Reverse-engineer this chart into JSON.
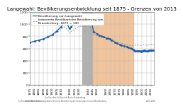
{
  "title": "Langewahl: Bevölkerungsentwicklung seit 1875 - Grenzen von 2013",
  "background_color": "#ffffff",
  "plot_bg_color": "#ffffff",
  "grid_color": "#bbbbbb",
  "nazi_start": 1933,
  "nazi_end": 1945,
  "nazi_color": "#b0b0b0",
  "ddr_start": 1945,
  "ddr_end": 1990,
  "ddr_color": "#f2c49b",
  "years_blue": [
    1875,
    1880,
    1885,
    1890,
    1895,
    1900,
    1905,
    1910,
    1913,
    1917,
    1919,
    1921,
    1925,
    1929,
    1933,
    1936,
    1939,
    1942,
    1944,
    1946,
    1950,
    1952,
    1955,
    1957,
    1960,
    1962,
    1964,
    1966,
    1970,
    1972,
    1975,
    1977,
    1980,
    1983,
    1985,
    1987,
    1989,
    1990,
    1991,
    1992,
    1993,
    1994,
    1995,
    1996,
    1997,
    1998,
    1999,
    2000,
    2001,
    2002,
    2003,
    2004,
    2005,
    2006,
    2007,
    2008,
    2009,
    2010,
    2011,
    2012,
    2013
  ],
  "pop_blue": [
    700,
    720,
    740,
    760,
    790,
    830,
    890,
    960,
    1010,
    990,
    930,
    960,
    1010,
    1060,
    1080,
    1060,
    1090,
    1100,
    1020,
    880,
    840,
    820,
    800,
    790,
    775,
    770,
    760,
    740,
    700,
    685,
    665,
    655,
    640,
    625,
    615,
    605,
    600,
    585,
    570,
    560,
    558,
    560,
    563,
    566,
    560,
    558,
    554,
    560,
    565,
    570,
    567,
    562,
    558,
    556,
    562,
    568,
    574,
    578,
    570,
    574,
    576
  ],
  "years_grey": [
    1875,
    1880,
    1885,
    1890,
    1895,
    1900,
    1905,
    1910,
    1913,
    1917,
    1919,
    1921,
    1925,
    1929,
    1933,
    1936,
    1939,
    1942,
    1944,
    1946,
    1950,
    1952,
    1955,
    1957,
    1960,
    1962,
    1964,
    1966,
    1970,
    1972,
    1975,
    1977,
    1980,
    1983,
    1985,
    1987,
    1989,
    1990,
    1991,
    1992,
    1993,
    1994,
    1995,
    1996,
    1997,
    1998,
    1999,
    2000,
    2001,
    2002,
    2003,
    2004,
    2005,
    2006,
    2007,
    2008,
    2009,
    2010,
    2011,
    2012,
    2013
  ],
  "pop_grey": [
    700,
    715,
    730,
    755,
    780,
    815,
    865,
    920,
    960,
    910,
    850,
    880,
    920,
    960,
    970,
    960,
    980,
    960,
    900,
    840,
    810,
    800,
    790,
    782,
    770,
    765,
    758,
    750,
    718,
    705,
    692,
    683,
    672,
    660,
    655,
    650,
    648,
    645,
    648,
    653,
    655,
    658,
    662,
    660,
    657,
    654,
    651,
    654,
    660,
    665,
    662,
    659,
    656,
    654,
    658,
    663,
    668,
    672,
    665,
    668,
    670
  ],
  "ylim": [
    0,
    1200
  ],
  "xlim": [
    1875,
    2013
  ],
  "yticks": [
    0,
    200,
    400,
    600,
    800,
    1000,
    1200
  ],
  "ytick_labels": [
    "0",
    "200",
    "400",
    "600",
    "800",
    "1.000",
    "1.200"
  ],
  "xtick_years": [
    1875,
    1880,
    1885,
    1890,
    1895,
    1900,
    1905,
    1910,
    1920,
    1925,
    1930,
    1940,
    1945,
    1950,
    1960,
    1965,
    1970,
    1975,
    1980,
    1985,
    1990,
    1995,
    2000,
    2005,
    2010
  ],
  "blue_color": "#1a5fa8",
  "grey_color": "#888888",
  "blue_label": "Bevölkerung von Langewahl",
  "grey_label": "Indexierte Bevölkerliche Bevölkerung von\nBrandenburg, 1875 = 100",
  "legend_fontsize": 3.2,
  "title_fontsize": 5.0,
  "tick_fontsize": 3.0,
  "source_text": "Quellen: Amt für Statistik Berlin-Brandenburg,\nStatistische Gemändegeübersichten zur Bevölkerung der Gemeinden im Land Brandenburg",
  "author_text": "by Florian O. Pfannkuche",
  "date_text": "24.02.2016"
}
